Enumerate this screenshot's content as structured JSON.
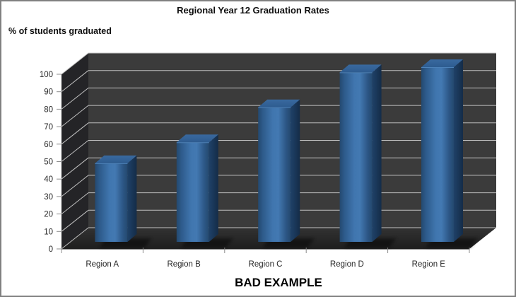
{
  "window": {
    "background": "#FFFFFF",
    "border_color": "#808080"
  },
  "chart": {
    "title": "Regional Year 12 Graduation Rates",
    "y_axis_label": "% of students graduated",
    "caption": "BAD EXAMPLE"
  },
  "chart_data": {
    "type": "bar",
    "style": "3d-column",
    "title": "Regional Year 12 Graduation Rates",
    "xlabel": "",
    "ylabel": "% of students graduated",
    "categories": [
      "Region A",
      "Region B",
      "Region C",
      "Region D",
      "Region E"
    ],
    "values": [
      45,
      57,
      77,
      97,
      100
    ],
    "ylim": [
      0,
      100
    ],
    "ytick_step": 10,
    "grid": "on",
    "legend_position": "none",
    "annotation": "BAD EXAMPLE",
    "colors": {
      "bar_main": "#3E74AC",
      "bar_dark": "#24496F",
      "bar_side": "#1B3A5E",
      "bar_top": "#2E5C90",
      "back_wall": "#3B3B3B",
      "left_wall": "#242427",
      "floor_back": "#323232",
      "floor_front": "#1E1E1E",
      "gridline": "#C0C0C0",
      "axis": "#8C8C8C",
      "tick_label": "#262626"
    }
  }
}
